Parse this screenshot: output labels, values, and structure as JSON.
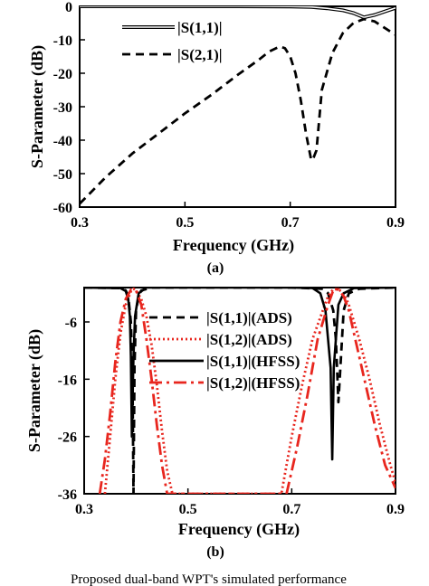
{
  "chart_data": [
    {
      "type": "line",
      "panel_label": "(a)",
      "xlabel": "Frequency (GHz)",
      "ylabel": "S-Parameter (dB)",
      "xlim": [
        0.3,
        0.9
      ],
      "ylim": [
        -60,
        0
      ],
      "xticks": [
        0.3,
        0.5,
        0.7,
        0.9
      ],
      "xtick_labels": [
        "0.3",
        "0.5",
        "0.7",
        "0.9"
      ],
      "yticks": [
        0,
        -10,
        -20,
        -30,
        -40,
        -50,
        -60
      ],
      "ytick_labels": [
        "0",
        "-10",
        "-20",
        "-30",
        "-40",
        "-50",
        "-60"
      ],
      "grid": false,
      "legend_position": "top",
      "series": [
        {
          "name": "|S(1,1)|",
          "style": "double-solid",
          "color": "#000000",
          "x": [
            0.3,
            0.4,
            0.5,
            0.6,
            0.7,
            0.74,
            0.77,
            0.8,
            0.82,
            0.84,
            0.86,
            0.88,
            0.9
          ],
          "y": [
            0.0,
            0.0,
            0.0,
            0.0,
            -0.05,
            -0.2,
            -0.6,
            -1.2,
            -2.0,
            -3.3,
            -2.6,
            -1.5,
            -0.5
          ]
        },
        {
          "name": "|S(2,1)|",
          "style": "dashed",
          "color": "#000000",
          "x": [
            0.3,
            0.35,
            0.4,
            0.45,
            0.5,
            0.55,
            0.6,
            0.64,
            0.66,
            0.68,
            0.69,
            0.7,
            0.71,
            0.72,
            0.73,
            0.74,
            0.745,
            0.75,
            0.76,
            0.78,
            0.8,
            0.82,
            0.84,
            0.86,
            0.88,
            0.9
          ],
          "y": [
            -59,
            -51,
            -44,
            -38,
            -32,
            -26.5,
            -20.5,
            -16,
            -13.5,
            -12.0,
            -12.5,
            -15,
            -20,
            -28,
            -38,
            -46,
            -45,
            -43,
            -25,
            -14,
            -8,
            -5,
            -3.8,
            -4.5,
            -6.5,
            -8.5
          ]
        }
      ]
    },
    {
      "type": "line",
      "panel_label": "(b)",
      "xlabel": "Frequency (GHz)",
      "ylabel": "S-Parameter (dB)",
      "xlim": [
        0.3,
        0.9
      ],
      "ylim": [
        -36,
        0
      ],
      "xticks": [
        0.3,
        0.5,
        0.7,
        0.9
      ],
      "xtick_labels": [
        "0.3",
        "0.5",
        "0.7",
        "0.9"
      ],
      "yticks": [
        -6,
        -16,
        -26,
        -36
      ],
      "ytick_labels": [
        "-6",
        "-16",
        "-26",
        "-36"
      ],
      "grid": false,
      "legend_position": "top",
      "series": [
        {
          "name": "|S(1,1)|(ADS)",
          "style": "dashed",
          "color": "#000000",
          "x": [
            0.3,
            0.37,
            0.38,
            0.385,
            0.39,
            0.393,
            0.395,
            0.397,
            0.4,
            0.405,
            0.41,
            0.43,
            0.7,
            0.76,
            0.77,
            0.78,
            0.785,
            0.79,
            0.795,
            0.8,
            0.81,
            0.83,
            0.9
          ],
          "y": [
            0,
            -0.1,
            -0.5,
            -1.5,
            -6,
            -14,
            -36,
            -14,
            -4,
            -1.5,
            -0.5,
            0,
            0,
            -0.2,
            -1,
            -4,
            -9,
            -20,
            -12,
            -4,
            -1,
            -0.2,
            0
          ]
        },
        {
          "name": "|S(1,2)|(ADS)",
          "style": "dotted",
          "color": "#e8261e",
          "x": [
            0.34,
            0.35,
            0.36,
            0.37,
            0.38,
            0.39,
            0.395,
            0.4,
            0.41,
            0.42,
            0.43,
            0.44,
            0.45,
            0.46,
            0.47,
            0.68,
            0.7,
            0.72,
            0.74,
            0.76,
            0.77,
            0.78,
            0.79,
            0.8,
            0.81,
            0.83,
            0.85,
            0.87,
            0.89,
            0.9
          ],
          "y": [
            -36,
            -26,
            -16,
            -8,
            -3,
            -0.7,
            -0.2,
            -0.5,
            -2,
            -5,
            -10,
            -17,
            -25,
            -32,
            -36,
            -36,
            -26,
            -17,
            -9,
            -4,
            -1.5,
            -0.3,
            -0.3,
            -1,
            -3,
            -9,
            -16,
            -24,
            -31,
            -34
          ]
        },
        {
          "name": "|S(1,1)|(HFSS)",
          "style": "solid",
          "color": "#000000",
          "x": [
            0.3,
            0.37,
            0.38,
            0.385,
            0.388,
            0.39,
            0.392,
            0.395,
            0.398,
            0.405,
            0.42,
            0.7,
            0.74,
            0.755,
            0.765,
            0.775,
            0.778,
            0.781,
            0.79,
            0.8,
            0.82,
            0.9
          ],
          "y": [
            0,
            -0.1,
            -0.6,
            -2,
            -5,
            -12,
            -26,
            -12,
            -5,
            -1,
            0,
            0,
            -0.1,
            -1,
            -4,
            -14,
            -30,
            -14,
            -3,
            -1,
            -0.1,
            0
          ]
        },
        {
          "name": "|S(1,2)|(HFSS)",
          "style": "dashdot",
          "color": "#e8261e",
          "x": [
            0.33,
            0.34,
            0.35,
            0.36,
            0.37,
            0.38,
            0.39,
            0.4,
            0.41,
            0.42,
            0.43,
            0.44,
            0.45,
            0.46,
            0.69,
            0.71,
            0.73,
            0.75,
            0.77,
            0.78,
            0.79,
            0.8,
            0.81,
            0.82,
            0.84,
            0.86,
            0.88,
            0.9
          ],
          "y": [
            -36,
            -30,
            -22,
            -13,
            -6,
            -2,
            -0.4,
            -0.5,
            -3,
            -9,
            -16,
            -24,
            -31,
            -36,
            -36,
            -28,
            -19,
            -9,
            -3,
            -0.5,
            -0.3,
            -1.5,
            -4,
            -8,
            -16,
            -24,
            -31,
            -35
          ]
        }
      ]
    }
  ],
  "caption_text": "Proposed dual-band WPT's simulated performance"
}
